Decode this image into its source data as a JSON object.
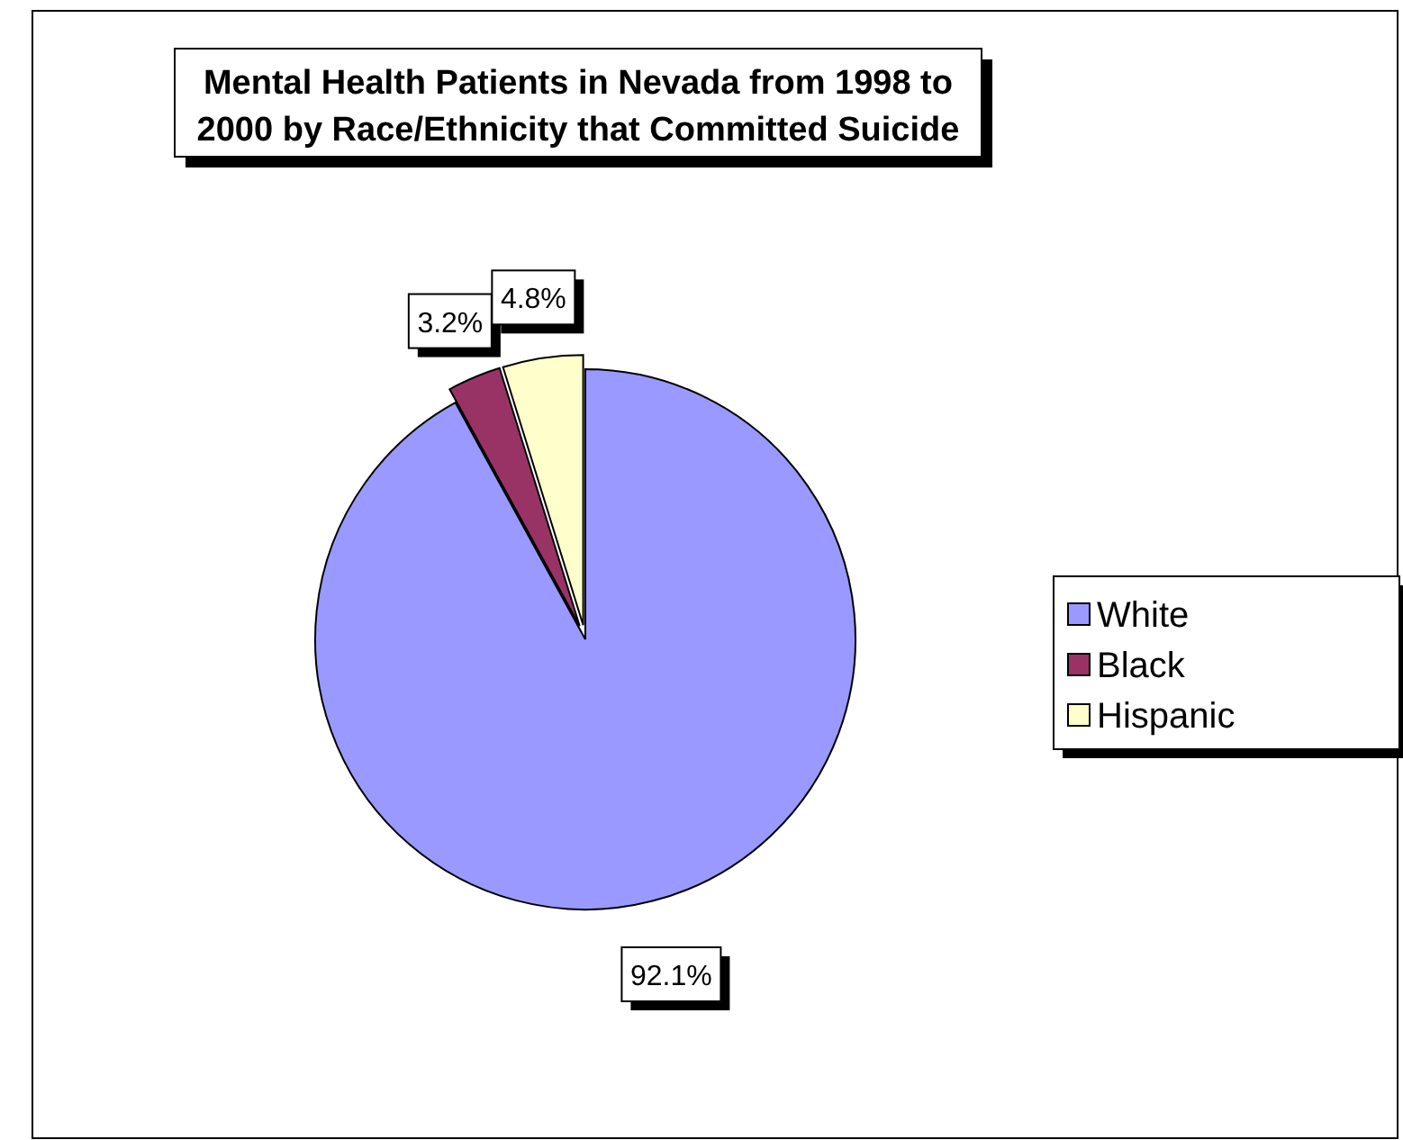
{
  "chart_data": {
    "type": "pie",
    "title": "Mental Health Patients in Nevada from 1998 to 2000 by Race/Ethnicity that Committed Suicide",
    "categories": [
      "White",
      "Black",
      "Hispanic"
    ],
    "values": [
      92.1,
      3.2,
      4.8
    ],
    "colors": [
      "#9999ff",
      "#993366",
      "#ffffcc"
    ],
    "value_labels": [
      "92.1%",
      "3.2%",
      "4.8%"
    ],
    "legend": "right"
  }
}
